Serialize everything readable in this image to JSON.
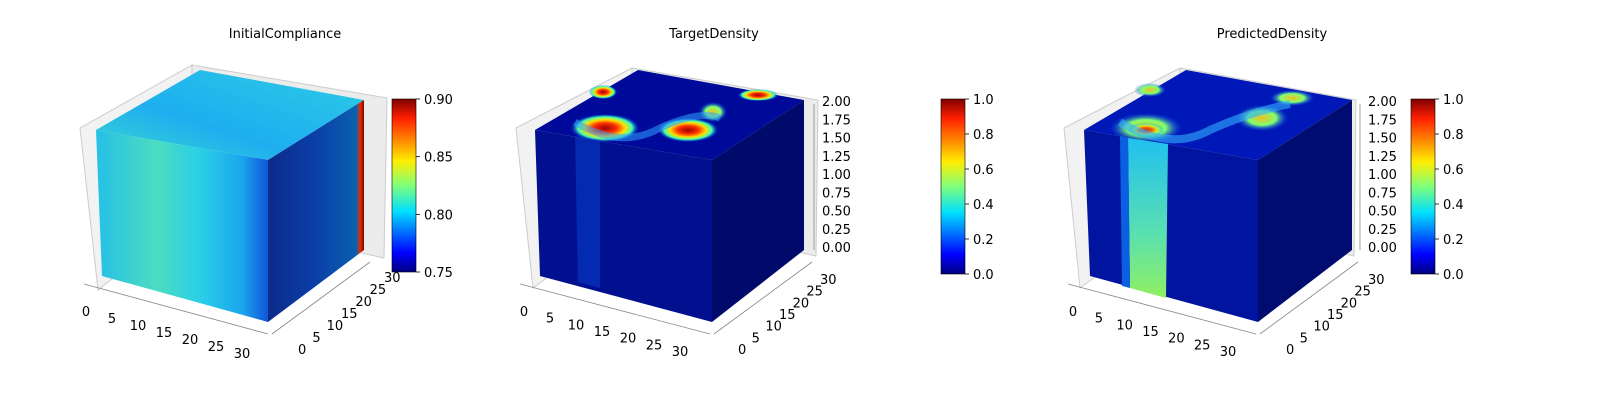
{
  "chart_data": [
    {
      "type": "heatmap",
      "title": "InitialCompliance",
      "x_ticks": [
        "0",
        "5",
        "10",
        "15",
        "20",
        "25",
        "30"
      ],
      "y_ticks": [
        "0",
        "5",
        "10",
        "15",
        "20",
        "25",
        "30"
      ],
      "z_ticks": [],
      "colorbar": {
        "min": 0.75,
        "max": 0.9,
        "ticks": [
          "0.75",
          "0.80",
          "0.85",
          "0.90"
        ],
        "colormap": "jet"
      },
      "face_values": {
        "top": 0.805,
        "front": 0.8,
        "side": 0.77,
        "edge": 0.9
      }
    },
    {
      "type": "heatmap",
      "title": "TargetDensity",
      "x_ticks": [
        "0",
        "5",
        "10",
        "15",
        "20",
        "25",
        "30"
      ],
      "y_ticks": [
        "0",
        "5",
        "10",
        "15",
        "20",
        "25",
        "30"
      ],
      "z_ticks": [
        "0.00",
        "0.25",
        "0.50",
        "0.75",
        "1.00",
        "1.25",
        "1.50",
        "1.75",
        "2.00"
      ],
      "colorbar": {
        "min": 0.0,
        "max": 1.0,
        "ticks": [
          "0.0",
          "0.2",
          "0.4",
          "0.6",
          "0.8",
          "1.0"
        ],
        "colormap": "jet"
      },
      "face_values": {
        "top": 0.05,
        "front": 0.05,
        "side": 0.05
      }
    },
    {
      "type": "heatmap",
      "title": "PredictedDensity",
      "x_ticks": [
        "0",
        "5",
        "10",
        "15",
        "20",
        "25",
        "30"
      ],
      "y_ticks": [
        "0",
        "5",
        "10",
        "15",
        "20",
        "25",
        "30"
      ],
      "z_ticks": [
        "0.00",
        "0.25",
        "0.50",
        "0.75",
        "1.00",
        "1.25",
        "1.50",
        "1.75",
        "2.00"
      ],
      "colorbar": {
        "min": 0.0,
        "max": 1.0,
        "ticks": [
          "0.0",
          "0.2",
          "0.4",
          "0.6",
          "0.8",
          "1.0"
        ],
        "colormap": "jet"
      },
      "face_values": {
        "top": 0.1,
        "front": 0.08,
        "side": 0.05,
        "column": 0.45
      }
    }
  ]
}
